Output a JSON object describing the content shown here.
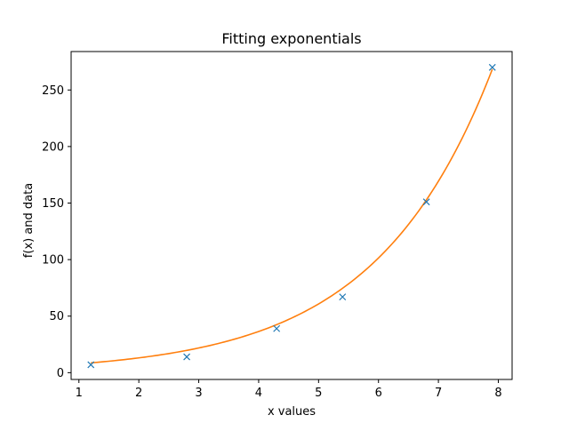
{
  "chart_data": {
    "type": "scatter",
    "title": "Fitting exponentials",
    "xlabel": "x values",
    "ylabel": "f(x) and data",
    "xlim": [
      0.87,
      8.23
    ],
    "ylim": [
      -6,
      284
    ],
    "xticks": [
      1,
      2,
      3,
      4,
      5,
      6,
      7,
      8
    ],
    "yticks": [
      0,
      50,
      100,
      150,
      200,
      250
    ],
    "grid": false,
    "series": [
      {
        "kind": "scatter",
        "marker": "x",
        "color": "#1f77b4",
        "x": [
          1.2,
          2.8,
          4.3,
          5.4,
          6.8,
          7.9
        ],
        "y": [
          7,
          14,
          39,
          67,
          151,
          270
        ]
      },
      {
        "kind": "line",
        "color": "#ff7f0e",
        "fit": {
          "a": 4.7,
          "b": 0.512
        },
        "x_range": [
          1.2,
          7.9
        ]
      }
    ]
  }
}
